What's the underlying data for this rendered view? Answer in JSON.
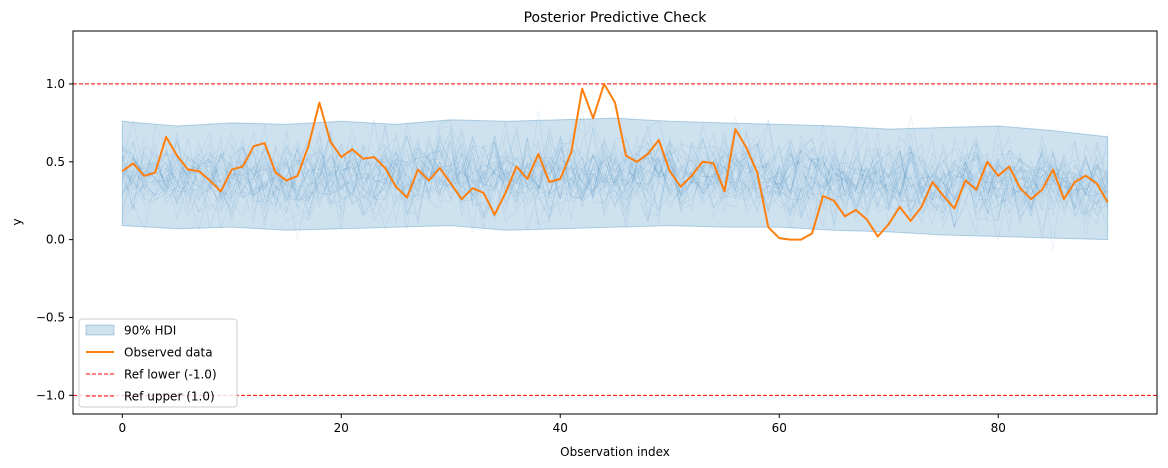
{
  "chart_data": {
    "type": "line",
    "title": "Posterior Predictive Check",
    "xlabel": "Observation index",
    "ylabel": "y",
    "xlim": [
      -4.5,
      94.5
    ],
    "ylim": [
      -1.12,
      1.34
    ],
    "xticks": [
      0,
      20,
      40,
      60,
      80
    ],
    "xtick_labels": [
      "0",
      "20",
      "40",
      "60",
      "80"
    ],
    "yticks": [
      -1.0,
      -0.5,
      0.0,
      0.5,
      1.0
    ],
    "ytick_labels": [
      "−1.0",
      "−0.5",
      "0.0",
      "0.5",
      "1.0"
    ],
    "grid": false,
    "legend_position": "lower-left",
    "colors": {
      "band": "#1f77b4",
      "observed": "#ff7f0e",
      "ref": "#ff0000"
    },
    "hdi": {
      "name": "90% HDI",
      "x": [
        0,
        5,
        10,
        15,
        20,
        25,
        30,
        35,
        40,
        45,
        50,
        55,
        60,
        65,
        70,
        75,
        80,
        85,
        90
      ],
      "lower": [
        0.09,
        0.07,
        0.08,
        0.06,
        0.07,
        0.08,
        0.09,
        0.06,
        0.07,
        0.08,
        0.09,
        0.08,
        0.08,
        0.06,
        0.05,
        0.03,
        0.02,
        0.01,
        0.0
      ],
      "upper": [
        0.76,
        0.73,
        0.75,
        0.74,
        0.76,
        0.74,
        0.77,
        0.76,
        0.77,
        0.78,
        0.76,
        0.75,
        0.74,
        0.73,
        0.71,
        0.72,
        0.73,
        0.7,
        0.66
      ]
    },
    "observed": {
      "name": "Observed data",
      "x": [
        0,
        1,
        2,
        3,
        4,
        5,
        6,
        7,
        8,
        9,
        10,
        11,
        12,
        13,
        14,
        15,
        16,
        17,
        18,
        19,
        20,
        21,
        22,
        23,
        24,
        25,
        26,
        27,
        28,
        29,
        30,
        31,
        32,
        33,
        34,
        35,
        36,
        37,
        38,
        39,
        40,
        41,
        42,
        43,
        44,
        45,
        46,
        47,
        48,
        49,
        50,
        51,
        52,
        53,
        54,
        55,
        56,
        57,
        58,
        59,
        60,
        61,
        62,
        63,
        64,
        65,
        66,
        67,
        68,
        69,
        70,
        71,
        72,
        73,
        74,
        75,
        76,
        77,
        78,
        79,
        80,
        81,
        82,
        83,
        84,
        85,
        86,
        87,
        88,
        89,
        90
      ],
      "y": [
        0.44,
        0.49,
        0.41,
        0.43,
        0.66,
        0.54,
        0.45,
        0.44,
        0.38,
        0.31,
        0.45,
        0.47,
        0.6,
        0.62,
        0.43,
        0.38,
        0.41,
        0.6,
        0.88,
        0.63,
        0.53,
        0.58,
        0.52,
        0.53,
        0.46,
        0.34,
        0.27,
        0.45,
        0.38,
        0.46,
        0.36,
        0.26,
        0.33,
        0.3,
        0.16,
        0.3,
        0.47,
        0.39,
        0.55,
        0.37,
        0.39,
        0.56,
        0.97,
        0.78,
        1.0,
        0.88,
        0.54,
        0.5,
        0.55,
        0.64,
        0.44,
        0.34,
        0.41,
        0.5,
        0.49,
        0.31,
        0.71,
        0.59,
        0.43,
        0.08,
        0.01,
        0.0,
        0.0,
        0.04,
        0.28,
        0.25,
        0.15,
        0.19,
        0.13,
        0.02,
        0.1,
        0.21,
        0.12,
        0.21,
        0.37,
        0.28,
        0.2,
        0.38,
        0.32,
        0.5,
        0.41,
        0.47,
        0.33,
        0.26,
        0.32,
        0.45,
        0.26,
        0.37,
        0.41,
        0.36,
        0.24
      ]
    },
    "reference_lines": [
      {
        "name": "Ref lower (-1.0)",
        "y": -1.0
      },
      {
        "name": "Ref upper (1.0)",
        "y": 1.0
      }
    ]
  }
}
